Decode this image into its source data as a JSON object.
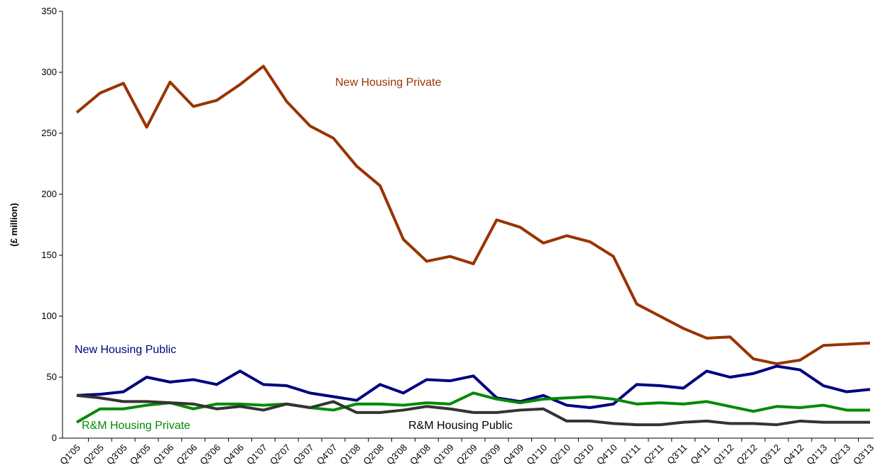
{
  "chart_data": {
    "type": "line",
    "y_label": "(£ million)",
    "categories": [
      "Q1'05",
      "Q2'05",
      "Q3'05",
      "Q4'05",
      "Q1'06",
      "Q2'06",
      "Q3'06",
      "Q4'06",
      "Q1'07",
      "Q2'07",
      "Q3'07",
      "Q4'07",
      "Q1'08",
      "Q2'08",
      "Q3'08",
      "Q4'08",
      "Q1'09",
      "Q2'09",
      "Q3'09",
      "Q4'09",
      "Q1'10",
      "Q2'10",
      "Q3'10",
      "Q4'10",
      "Q1'11",
      "Q2'11",
      "Q3'11",
      "Q4'11",
      "Q1'12",
      "Q2'12",
      "Q3'12",
      "Q4'12",
      "Q1'13",
      "Q2'13",
      "Q3'13"
    ],
    "series": [
      {
        "name": "New Housing Private",
        "color": "#993300",
        "values": [
          267,
          283,
          291,
          255,
          292,
          272,
          277,
          290,
          305,
          276,
          256,
          246,
          223,
          207,
          163,
          145,
          149,
          143,
          179,
          173,
          160,
          166,
          161,
          149,
          110,
          100,
          90,
          82,
          83,
          65,
          61,
          64,
          76,
          77,
          78
        ]
      },
      {
        "name": "New Housing Public",
        "color": "#000080",
        "values": [
          35,
          36,
          38,
          50,
          46,
          48,
          44,
          55,
          44,
          43,
          37,
          34,
          31,
          44,
          37,
          48,
          47,
          51,
          33,
          30,
          35,
          27,
          25,
          28,
          44,
          43,
          41,
          55,
          50,
          53,
          59,
          56,
          43,
          38,
          40
        ]
      },
      {
        "name": "R&M Housing Private",
        "color": "#008a00",
        "values": [
          13,
          24,
          24,
          27,
          29,
          24,
          28,
          28,
          27,
          28,
          25,
          23,
          28,
          28,
          27,
          29,
          28,
          37,
          32,
          29,
          32,
          33,
          34,
          32,
          28,
          29,
          28,
          30,
          26,
          22,
          26,
          25,
          27,
          23,
          23
        ]
      },
      {
        "name": "R&M Housing Public",
        "color": "#333333",
        "values": [
          35,
          33,
          30,
          30,
          29,
          28,
          24,
          26,
          23,
          28,
          25,
          30,
          21,
          21,
          23,
          26,
          24,
          21,
          21,
          23,
          24,
          14,
          14,
          12,
          11,
          11,
          13,
          14,
          12,
          12,
          11,
          14,
          13,
          13,
          13
        ]
      }
    ],
    "ylim": [
      0,
      350
    ],
    "yticks": [
      0,
      50,
      100,
      150,
      200,
      250,
      300,
      350
    ]
  }
}
